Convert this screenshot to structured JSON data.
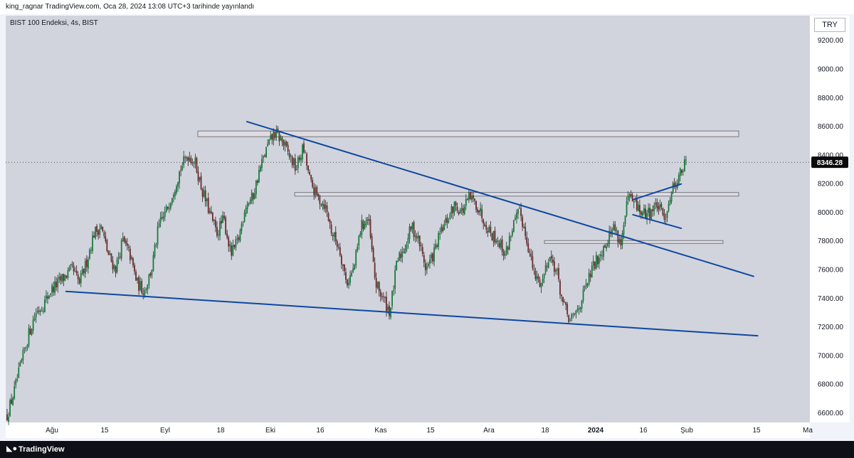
{
  "header": {
    "publish_info": "king_ragnar TradingView.com, Oca 28, 2024 13:08 UTC+3 tarihinde yayınlandı"
  },
  "chart_header": {
    "symbol_info": "BIST 100 Endeksi, 4s, BIST",
    "currency": "TRY"
  },
  "footer": {
    "brand": "TradingView",
    "logo_icon": "tradingview-logo-icon"
  },
  "chart_data": {
    "type": "candlestick",
    "title": "BIST 100 Endeksi, 4s, BIST",
    "currency": "TRY",
    "last_price": "8346.28",
    "last_price_value": 8346.28,
    "y_ticks": [
      "9200.00",
      "9000.00",
      "8800.00",
      "8600.00",
      "8400.00",
      "8200.00",
      "8000.00",
      "7800.00",
      "7600.00",
      "7400.00",
      "7200.00",
      "7000.00",
      "6800.00",
      "6600.00"
    ],
    "ylim": [
      6530,
      9370
    ],
    "grid": false,
    "x_ticks": [
      {
        "label": "Ağu",
        "bold": false
      },
      {
        "label": "15",
        "bold": false
      },
      {
        "label": "Eyl",
        "bold": false
      },
      {
        "label": "18",
        "bold": false
      },
      {
        "label": "Eki",
        "bold": false
      },
      {
        "label": "16",
        "bold": false
      },
      {
        "label": "Kas",
        "bold": false
      },
      {
        "label": "15",
        "bold": false
      },
      {
        "label": "Ara",
        "bold": false
      },
      {
        "label": "18",
        "bold": false
      },
      {
        "label": "2024",
        "bold": true
      },
      {
        "label": "16",
        "bold": false
      },
      {
        "label": "Şub",
        "bold": false
      },
      {
        "label": "15",
        "bold": false
      },
      {
        "label": "Ma",
        "bold": false
      }
    ],
    "price_path": [
      6580,
      6750,
      6950,
      7150,
      7300,
      7350,
      7450,
      7500,
      7550,
      7600,
      7500,
      7650,
      7850,
      7900,
      7700,
      7600,
      7800,
      7700,
      7500,
      7450,
      7600,
      7900,
      8000,
      8150,
      8300,
      8400,
      8350,
      8150,
      8000,
      7850,
      7950,
      7700,
      7800,
      8050,
      8100,
      8300,
      8450,
      8550,
      8500,
      8400,
      8300,
      8450,
      8200,
      8100,
      8050,
      7850,
      7750,
      7500,
      7600,
      7900,
      7950,
      7500,
      7400,
      7300,
      7650,
      7750,
      7900,
      7800,
      7600,
      7700,
      7850,
      7950,
      8050,
      8000,
      8100,
      8050,
      7950,
      7850,
      7800,
      7700,
      7900,
      8000,
      7800,
      7550,
      7500,
      7700,
      7600,
      7350,
      7230,
      7320,
      7450,
      7600,
      7700,
      7800,
      7900,
      7780,
      8100,
      8050,
      7980,
      8000,
      8050,
      7950,
      8150,
      8250,
      8346
    ],
    "annotations": {
      "resistance_zones": [
        {
          "from": 8525,
          "to": 8565
        },
        {
          "from": 8110,
          "to": 8135
        },
        {
          "from": 7780,
          "to": 7800
        }
      ],
      "trend_lines": [
        {
          "name": "descending-resistance",
          "points": [
            [
              0.3,
              8630
            ],
            [
              0.93,
              7550
            ]
          ]
        },
        {
          "name": "long-support",
          "points": [
            [
              0.075,
              7445
            ],
            [
              0.935,
              7135
            ]
          ]
        },
        {
          "name": "flag-upper",
          "points": [
            [
              0.78,
              8085
            ],
            [
              0.84,
              8195
            ]
          ]
        },
        {
          "name": "flag-lower",
          "points": [
            [
              0.78,
              7980
            ],
            [
              0.84,
              7885
            ]
          ]
        }
      ]
    }
  }
}
